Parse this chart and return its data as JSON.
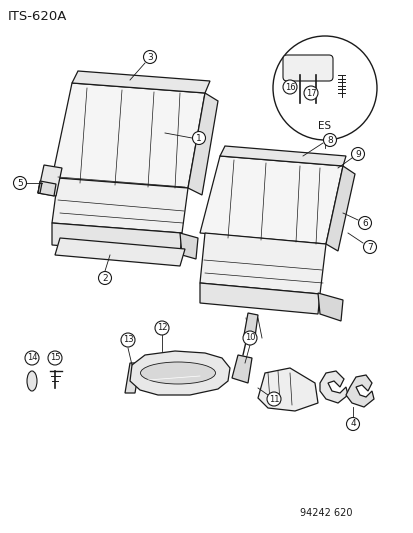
{
  "title": "ITS-620A",
  "part_number": "94242 620",
  "bg_color": "#ffffff",
  "line_color": "#1a1a1a",
  "figsize": [
    4.14,
    5.33
  ],
  "dpi": 100
}
